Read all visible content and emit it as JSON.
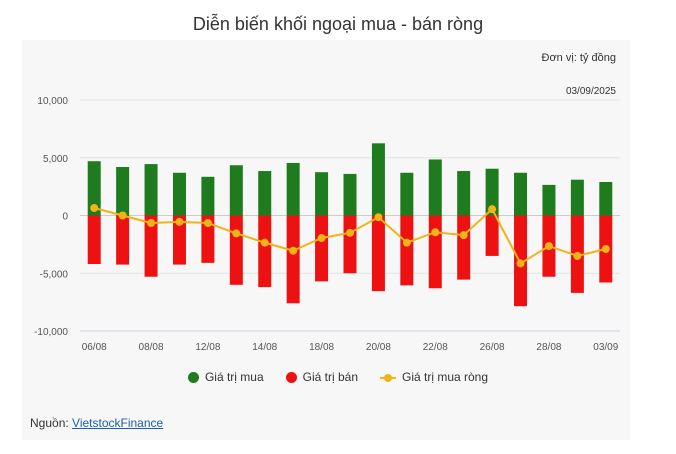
{
  "title": "Diễn biến khối ngoại mua - bán ròng",
  "unit_label": "Đơn vị: tỷ đồng",
  "date_label": "03/09/2025",
  "source": {
    "label": "Nguồn: ",
    "link_text": "VietstockFinance"
  },
  "colors": {
    "buy": "#1e7b1e",
    "sell": "#ee1111",
    "net": "#f0b418"
  },
  "chart_data": {
    "type": "bar",
    "ylim": [
      -10000,
      10000
    ],
    "yticks": [
      "10,000",
      "5,000",
      "0",
      "-5,000",
      "-10,000"
    ],
    "ytick_values": [
      10000,
      5000,
      0,
      -5000,
      -10000
    ],
    "x_tick_labels": [
      "06/08",
      "08/08",
      "12/08",
      "14/08",
      "18/08",
      "20/08",
      "22/08",
      "26/08",
      "28/08",
      "03/09"
    ],
    "x_tick_index": [
      0,
      2,
      4,
      6,
      8,
      10,
      12,
      14,
      16,
      18
    ],
    "n": 19,
    "series": [
      {
        "name": "Giá trị mua",
        "type": "bar",
        "values": [
          4700,
          4200,
          4450,
          3700,
          3350,
          4350,
          3850,
          4550,
          3750,
          3600,
          6250,
          3700,
          4850,
          3850,
          4050,
          3700,
          2650,
          3100,
          2900
        ]
      },
      {
        "name": "Giá trị bán",
        "type": "bar",
        "values": [
          -4200,
          -4250,
          -5300,
          -4250,
          -4100,
          -6000,
          -6200,
          -7600,
          -5700,
          -5000,
          -6550,
          -6050,
          -6300,
          -5550,
          -3500,
          -7850,
          -5300,
          -6700,
          -5800
        ]
      },
      {
        "name": "Giá trị mua ròng",
        "type": "line",
        "values": [
          650,
          0,
          -650,
          -550,
          -650,
          -1550,
          -2350,
          -3050,
          -1950,
          -1500,
          -150,
          -2350,
          -1450,
          -1700,
          550,
          -4150,
          -2650,
          -3500,
          -2900
        ]
      }
    ],
    "legend_position": "bottom",
    "grid": true
  }
}
